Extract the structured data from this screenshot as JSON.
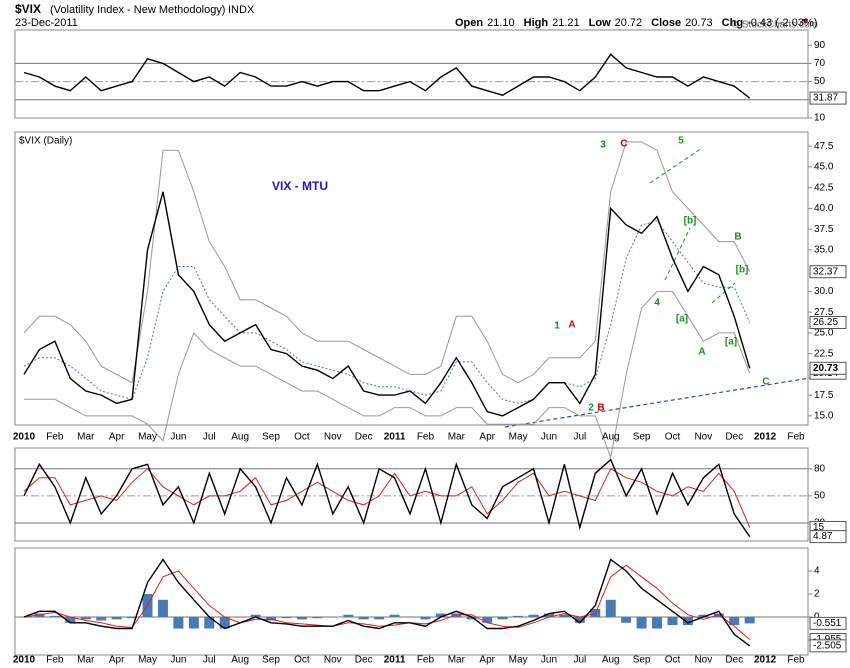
{
  "header": {
    "symbol": "$VIX",
    "name": "(Volatility Index - New Methodology)",
    "exchange": "INDX",
    "date": "23-Dec-2011",
    "quote": [
      {
        "label": "Open",
        "value": "21.10"
      },
      {
        "label": "High",
        "value": "21.21"
      },
      {
        "label": "Low",
        "value": "20.72"
      },
      {
        "label": "Close",
        "value": "20.73"
      },
      {
        "label": "Chg",
        "value": "-0.43 (-2.03%)"
      }
    ],
    "watermark": "© StockCharts.com"
  },
  "chart_data": [
    {
      "type": "line",
      "ylim": [
        10,
        106.7
      ],
      "yticks": [
        10,
        30,
        50,
        70,
        90
      ],
      "levels": [
        30,
        50,
        70
      ],
      "series": [
        {
          "color": "#000000",
          "values": [
            60,
            55,
            45,
            40,
            55,
            40,
            45,
            50,
            75,
            70,
            60,
            50,
            55,
            45,
            60,
            55,
            45,
            45,
            50,
            45,
            50,
            50,
            40,
            40,
            45,
            50,
            40,
            55,
            65,
            45,
            40,
            35,
            45,
            55,
            55,
            50,
            40,
            55,
            80,
            65,
            60,
            55,
            55,
            45,
            55,
            50,
            45,
            31.87,
            null,
            null,
            null,
            null
          ]
        }
      ]
    },
    {
      "type": "line",
      "title": "$VIX (Daily)",
      "subtitle": "VIX - MTU",
      "categories": [
        "2010",
        null,
        "Feb",
        null,
        "Mar",
        null,
        "Apr",
        null,
        "May",
        null,
        "Jun",
        null,
        "Jul",
        null,
        "Aug",
        null,
        "Sep",
        null,
        "Oct",
        null,
        "Nov",
        null,
        "Dec",
        null,
        "2011",
        null,
        "Feb",
        null,
        "Mar",
        null,
        "Apr",
        null,
        "May",
        null,
        "Jun",
        null,
        "Jul",
        null,
        "Aug",
        null,
        "Sep",
        null,
        "Oct",
        null,
        "Nov",
        null,
        "Dec",
        null,
        "2012",
        null,
        "Feb",
        null
      ],
      "ylim": [
        13.9,
        49.2
      ],
      "yticks": [
        {
          "value": 15,
          "label": "15.0"
        },
        17.5,
        22.5,
        {
          "value": 25,
          "label": "25.0"
        },
        27.5,
        {
          "value": 30,
          "label": "30.0"
        },
        {
          "value": 35,
          "label": "35.0"
        },
        37.5,
        {
          "value": 40,
          "label": "40.0"
        },
        42.5,
        {
          "value": 45,
          "label": "45.0"
        },
        47.5
      ],
      "series": [
        {
          "color": "#999999",
          "values": [
            25,
            27,
            27,
            26,
            24,
            21,
            20,
            19,
            30,
            47,
            47,
            42,
            36,
            33,
            29,
            29,
            28,
            27,
            25,
            24,
            24,
            24,
            23,
            22,
            21,
            20,
            20,
            21,
            27,
            27,
            24,
            20,
            19,
            20,
            22,
            22,
            22,
            24,
            42,
            48,
            48,
            47,
            42,
            40,
            38,
            36,
            36,
            32.37,
            null,
            null,
            null,
            null
          ]
        },
        {
          "color": "#999999",
          "values": [
            17,
            17,
            17,
            16,
            15,
            15,
            15,
            15,
            14,
            12,
            20,
            25,
            23,
            22,
            21,
            21,
            20,
            19,
            18,
            18,
            17,
            16,
            15,
            15,
            16,
            16,
            15,
            15,
            16,
            16,
            14,
            14,
            14,
            14,
            16,
            16,
            15,
            15,
            10,
            20,
            28,
            30,
            30,
            27,
            24,
            25,
            25,
            20.14,
            null,
            null,
            null,
            null
          ]
        },
        {
          "color": "#5577aa",
          "dash": true,
          "values": [
            21,
            22,
            22,
            21,
            19.5,
            18,
            17.5,
            17,
            22,
            30,
            33,
            33,
            29,
            27,
            25,
            25,
            24,
            23,
            21.5,
            21,
            20.5,
            20,
            19,
            18.5,
            18.5,
            18,
            17.5,
            18,
            21.5,
            21.5,
            19,
            17,
            16.5,
            17,
            19,
            19,
            18.5,
            19.5,
            26,
            34,
            38,
            38.5,
            36,
            33.5,
            31,
            30.5,
            30.5,
            26.25,
            null,
            null,
            null,
            null
          ]
        },
        {
          "color": "#000000",
          "values": [
            20,
            23,
            24,
            19.5,
            18,
            17.5,
            16.5,
            17,
            35,
            42,
            32,
            30,
            26,
            24,
            25,
            26,
            23,
            22.5,
            21,
            20.5,
            19.5,
            21,
            18,
            17.5,
            17.5,
            18,
            16.5,
            19,
            22,
            19,
            15.5,
            15,
            16,
            17,
            19,
            19,
            16.5,
            20,
            40,
            38,
            37,
            39,
            34,
            30,
            33,
            32,
            27,
            20.73,
            null,
            null,
            null,
            null
          ]
        }
      ],
      "annotations": [
        {
          "text": "3",
          "color": "#228b22"
        },
        {
          "text": "C",
          "color": "#cc0000"
        },
        {
          "text": "5",
          "color": "#228b22"
        },
        {
          "text": "[b]",
          "color": "#228b22"
        },
        {
          "text": "B",
          "color": "#228b22"
        },
        {
          "text": "[b]",
          "color": "#228b22"
        },
        {
          "text": "4",
          "color": "#228b22"
        },
        {
          "text": "[a]",
          "color": "#228b22"
        },
        {
          "text": "1",
          "color": "#228b22"
        },
        {
          "text": "A",
          "color": "#cc0000"
        },
        {
          "text": "[a]",
          "color": "#228b22"
        },
        {
          "text": "A",
          "color": "#228b22"
        },
        {
          "text": "2",
          "color": "#228b22"
        },
        {
          "text": "B",
          "color": "#cc0000"
        },
        {
          "text": "C",
          "color": "#228b22"
        }
      ]
    },
    {
      "type": "line",
      "ylim": [
        0,
        103
      ],
      "yticks": [
        20,
        50,
        80
      ],
      "levels": [
        20,
        50,
        80
      ],
      "series": [
        {
          "color": "#dd2222",
          "values": [
            55,
            70,
            70,
            40,
            45,
            50,
            45,
            65,
            80,
            60,
            50,
            40,
            50,
            50,
            55,
            70,
            40,
            45,
            55,
            65,
            55,
            45,
            40,
            50,
            75,
            50,
            55,
            50,
            50,
            60,
            30,
            45,
            65,
            75,
            50,
            55,
            50,
            45,
            80,
            70,
            65,
            55,
            50,
            60,
            55,
            75,
            55,
            15,
            null,
            null,
            null,
            null
          ]
        },
        {
          "color": "#000000",
          "values": [
            50,
            85,
            60,
            20,
            70,
            30,
            50,
            80,
            85,
            40,
            60,
            20,
            75,
            30,
            80,
            60,
            20,
            70,
            40,
            85,
            30,
            60,
            20,
            80,
            70,
            30,
            80,
            20,
            85,
            40,
            25,
            60,
            70,
            80,
            20,
            85,
            15,
            75,
            90,
            50,
            80,
            30,
            75,
            40,
            70,
            85,
            30,
            4.87,
            null,
            null,
            null,
            null
          ]
        }
      ]
    },
    {
      "type": "macd",
      "ylim": [
        -3.3,
        6
      ],
      "yticks": [
        -2,
        0,
        2,
        4
      ],
      "levels": [
        0
      ],
      "series": [
        {
          "color": "#4a7ab5",
          "bars": true,
          "values": [
            0,
            0.3,
            0.1,
            -0.5,
            -0.2,
            -0.3,
            -0.2,
            -0.1,
            2,
            1.5,
            -1,
            -1,
            -1,
            -1,
            0,
            0.2,
            -0.3,
            -0.1,
            -0.2,
            -0.1,
            0,
            0.2,
            -0.2,
            -0.2,
            0.2,
            0,
            -0.2,
            0.3,
            0.3,
            -0.2,
            -0.5,
            -0.2,
            0.1,
            0.2,
            0.3,
            0.2,
            -0.5,
            0.7,
            1.5,
            -0.5,
            -1,
            -1,
            -0.7,
            -0.7,
            0.2,
            0.3,
            -0.7,
            -0.551,
            null,
            null,
            null,
            null
          ]
        },
        {
          "color": "#dd2222",
          "values": [
            0,
            0.2,
            0.4,
            0,
            -0.3,
            -0.5,
            -0.8,
            -0.9,
            1,
            3.5,
            4,
            2.5,
            1,
            0,
            -0.5,
            -0.2,
            -0.2,
            -0.5,
            -0.6,
            -0.7,
            -0.8,
            -0.5,
            -0.6,
            -0.8,
            -0.7,
            -0.5,
            -0.6,
            -0.3,
            0.2,
            0.2,
            -0.5,
            -0.8,
            -0.9,
            -0.5,
            0,
            0.3,
            0,
            0.3,
            3.5,
            4.5,
            3.5,
            2.5,
            1.2,
            0.2,
            -0.2,
            0.2,
            -0.8,
            -1.955,
            null,
            null,
            null,
            null
          ]
        },
        {
          "color": "#000000",
          "values": [
            0,
            0.5,
            0.5,
            -0.5,
            -0.5,
            -0.8,
            -1,
            -1,
            3,
            5,
            3,
            1.5,
            0,
            -1,
            -0.5,
            0,
            -0.5,
            -0.6,
            -0.8,
            -0.8,
            -0.8,
            -0.3,
            -0.8,
            -1,
            -0.5,
            -0.5,
            -0.8,
            0,
            0.5,
            0,
            -1,
            -1,
            -0.8,
            -0.3,
            0.3,
            0.5,
            -0.5,
            1,
            5,
            4,
            2.5,
            1.5,
            0.5,
            -0.5,
            0,
            0.5,
            -1.5,
            -2.505,
            null,
            null,
            null,
            null
          ]
        }
      ]
    }
  ]
}
